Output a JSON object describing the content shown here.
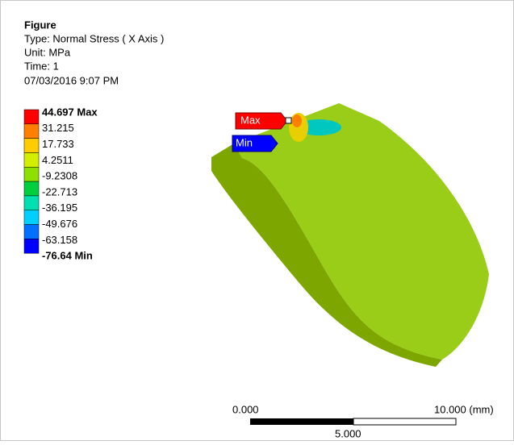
{
  "header": {
    "title": "Figure",
    "lines": [
      "Type: Normal Stress ( X Axis )",
      "Unit: MPa",
      "Time: 1",
      "07/03/2016 9:07 PM"
    ]
  },
  "legend": {
    "labels": [
      "44.697 Max",
      "31.215",
      "17.733",
      "4.2511",
      "-9.2308",
      "-22.713",
      "-36.195",
      "-49.676",
      "-63.158",
      "-76.64 Min"
    ],
    "colors": [
      "#ff0000",
      "#ff8000",
      "#ffcc00",
      "#d4ee00",
      "#8ee000",
      "#00d040",
      "#00e0b0",
      "#00d0ff",
      "#0070ff",
      "#0000ff"
    ]
  },
  "probes": {
    "max": "Max",
    "min": "Min"
  },
  "scale": {
    "start": "0.000",
    "end": "10.000 (mm)",
    "middle": "5.000"
  }
}
